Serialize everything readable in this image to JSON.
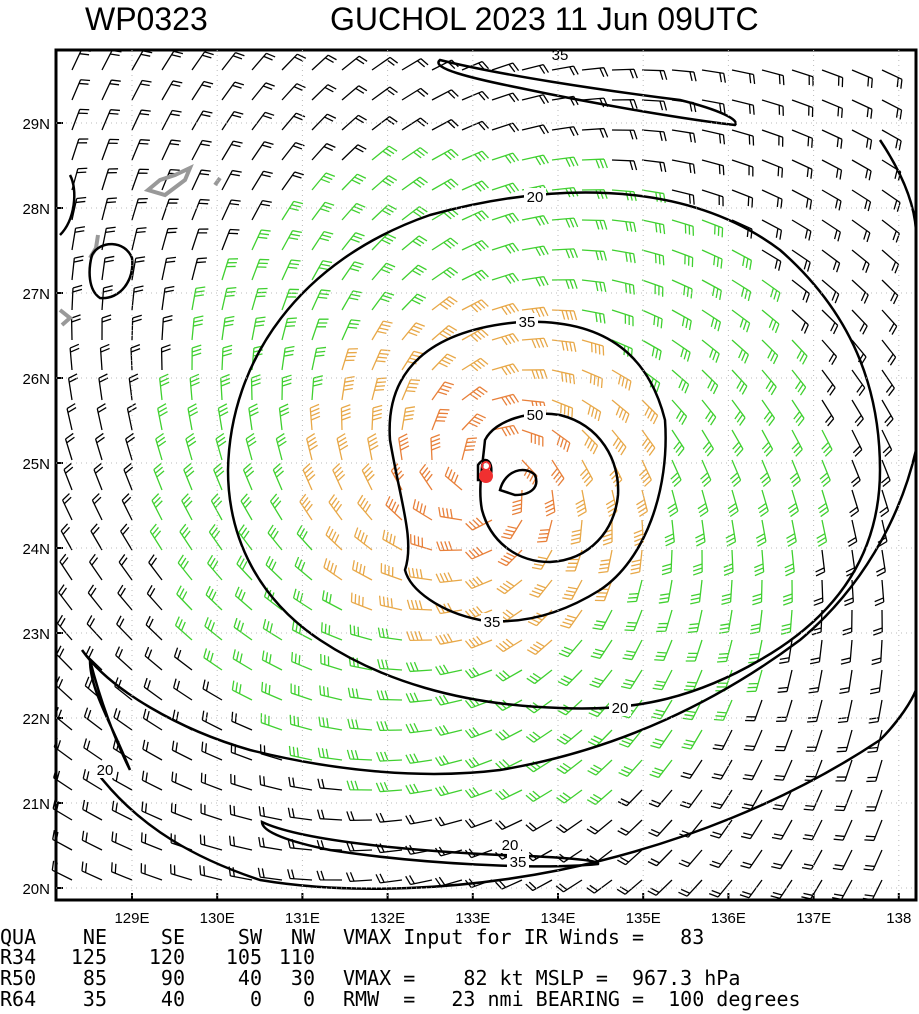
{
  "header": {
    "storm_id": "WP0323",
    "storm_info": "GUCHOL 2023 11 Jun 09UTC"
  },
  "map": {
    "lon_ticks": [
      {
        "value": 129,
        "label": "129E"
      },
      {
        "value": 130,
        "label": "130E"
      },
      {
        "value": 131,
        "label": "131E"
      },
      {
        "value": 132,
        "label": "132E"
      },
      {
        "value": 133,
        "label": "133E"
      },
      {
        "value": 134,
        "label": "134E"
      },
      {
        "value": 135,
        "label": "135E"
      },
      {
        "value": 136,
        "label": "136E"
      },
      {
        "value": 137,
        "label": "137E"
      },
      {
        "value": 138,
        "label": "138"
      }
    ],
    "lat_ticks": [
      {
        "value": 29,
        "label": "29N"
      },
      {
        "value": 28,
        "label": "28N"
      },
      {
        "value": 27,
        "label": "27N"
      },
      {
        "value": 26,
        "label": "26N"
      },
      {
        "value": 25,
        "label": "25N"
      },
      {
        "value": 24,
        "label": "24N"
      },
      {
        "value": 23,
        "label": "23N"
      },
      {
        "value": 22,
        "label": "22N"
      },
      {
        "value": 21,
        "label": "21N"
      },
      {
        "value": 20,
        "label": "20N"
      }
    ],
    "contour_labels": [
      35,
      20,
      35,
      50,
      35,
      20,
      20,
      20,
      35
    ]
  },
  "table": {
    "header": [
      "QUA",
      "NE",
      "SE",
      "SW",
      "NW"
    ],
    "rows": [
      [
        "R34",
        "125",
        "120",
        "105",
        "110"
      ],
      [
        "R50",
        "85",
        "90",
        "40",
        "30"
      ],
      [
        "R64",
        "35",
        "40",
        "0",
        "0"
      ]
    ]
  },
  "info": [
    "VMAX Input for IR Winds =   83",
    "VMAX =    82 kt MSLP =  967.3 hPa",
    "RMW  =   23 nmi BEARING =  100 degrees"
  ]
}
